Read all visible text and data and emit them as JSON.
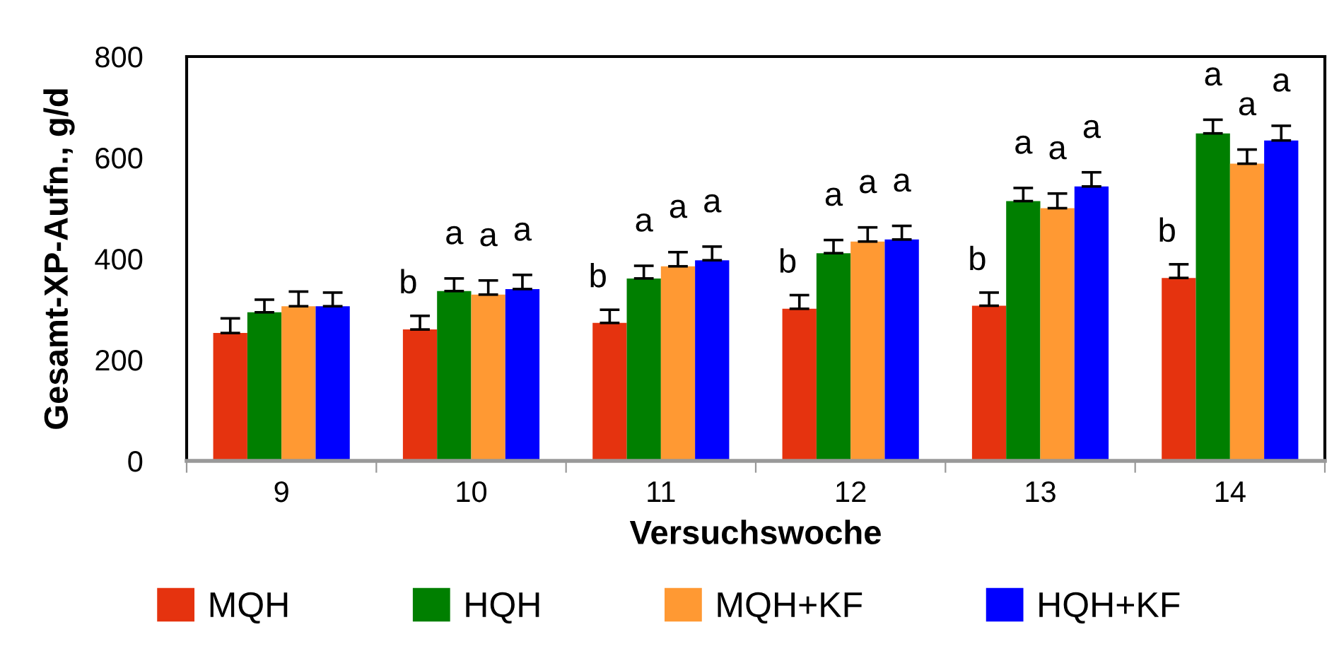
{
  "chart_data": {
    "type": "bar",
    "xlabel": "Versuchswoche",
    "ylabel": "Gesamt-XP-Aufn., g/d",
    "categories": [
      "9",
      "10",
      "11",
      "12",
      "13",
      "14"
    ],
    "series": [
      {
        "name": "MQH",
        "color": "#e5330f",
        "values": [
          253,
          260,
          273,
          301,
          307,
          362
        ],
        "errors": [
          [
            253,
            282
          ],
          [
            260,
            287
          ],
          [
            273,
            299
          ],
          [
            301,
            328
          ],
          [
            307,
            333
          ],
          [
            362,
            389
          ]
        ],
        "value_labels": [
          null,
          "b",
          "b",
          "b",
          "b",
          "b"
        ]
      },
      {
        "name": "HQH",
        "color": "#007f00",
        "values": [
          294,
          336,
          361,
          411,
          514,
          648
        ],
        "errors": [
          [
            294,
            319
          ],
          [
            336,
            361
          ],
          [
            361,
            386
          ],
          [
            411,
            437
          ],
          [
            514,
            540
          ],
          [
            648,
            675
          ]
        ],
        "value_labels": [
          null,
          "a",
          "a",
          "a",
          "a",
          "a"
        ]
      },
      {
        "name": "MQH+KF",
        "color": "#ff9933",
        "values": [
          306,
          329,
          385,
          434,
          500,
          588
        ],
        "errors": [
          [
            306,
            335
          ],
          [
            329,
            357
          ],
          [
            385,
            413
          ],
          [
            434,
            462
          ],
          [
            500,
            529
          ],
          [
            588,
            616
          ]
        ],
        "value_labels": [
          null,
          "a",
          "a",
          "a",
          "a",
          "a"
        ]
      },
      {
        "name": "HQH+KF",
        "color": "#0000ff",
        "values": [
          306,
          340,
          397,
          438,
          543,
          634
        ],
        "errors": [
          [
            306,
            333
          ],
          [
            340,
            368
          ],
          [
            397,
            424
          ],
          [
            438,
            465
          ],
          [
            543,
            571
          ],
          [
            634,
            663
          ]
        ],
        "value_labels": [
          null,
          "a",
          "a",
          "a",
          "a",
          "a"
        ]
      }
    ],
    "ylim": [
      0,
      800
    ],
    "yticks": [
      0,
      200,
      400,
      600,
      800
    ],
    "grid": false,
    "legend": "bottom"
  }
}
